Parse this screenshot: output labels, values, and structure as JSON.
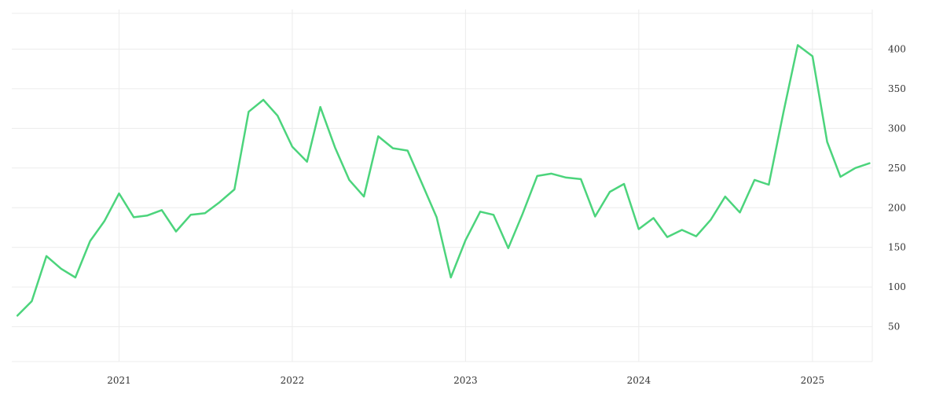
{
  "chart_data": {
    "type": "line",
    "title": "",
    "xlabel": "",
    "ylabel": "",
    "x_axis": {
      "type": "date",
      "range": [
        "2020-06-01",
        "2025-05-01"
      ],
      "tick_dates": [
        "2021-01-01",
        "2022-01-01",
        "2023-01-01",
        "2024-01-01",
        "2025-01-01"
      ],
      "tick_labels": [
        "2021",
        "2022",
        "2023",
        "2024",
        "2025"
      ]
    },
    "y_axis": {
      "position": "right",
      "ylim": [
        6,
        450
      ],
      "ticks": [
        50,
        100,
        150,
        200,
        250,
        300,
        350,
        400
      ],
      "tick_labels": [
        "50",
        "100",
        "150",
        "200",
        "250",
        "300",
        "350",
        "400"
      ]
    },
    "grid": true,
    "legend": "none",
    "series": [
      {
        "color": "#4cd47c",
        "points": [
          [
            "2020-06-01",
            64
          ],
          [
            "2020-07-01",
            82
          ],
          [
            "2020-08-01",
            139
          ],
          [
            "2020-09-01",
            123
          ],
          [
            "2020-10-01",
            112
          ],
          [
            "2020-11-01",
            158
          ],
          [
            "2020-12-01",
            183
          ],
          [
            "2021-01-01",
            218
          ],
          [
            "2021-02-01",
            188
          ],
          [
            "2021-03-01",
            190
          ],
          [
            "2021-04-01",
            197
          ],
          [
            "2021-05-01",
            170
          ],
          [
            "2021-06-01",
            191
          ],
          [
            "2021-07-01",
            193
          ],
          [
            "2021-08-01",
            207
          ],
          [
            "2021-09-01",
            223
          ],
          [
            "2021-10-01",
            321
          ],
          [
            "2021-11-01",
            336
          ],
          [
            "2021-12-01",
            316
          ],
          [
            "2022-01-01",
            277
          ],
          [
            "2022-02-01",
            258
          ],
          [
            "2022-03-01",
            327
          ],
          [
            "2022-04-01",
            276
          ],
          [
            "2022-05-01",
            235
          ],
          [
            "2022-06-01",
            214
          ],
          [
            "2022-07-01",
            290
          ],
          [
            "2022-08-01",
            275
          ],
          [
            "2022-09-01",
            272
          ],
          [
            "2022-10-01",
            231
          ],
          [
            "2022-11-01",
            188
          ],
          [
            "2022-12-01",
            112
          ],
          [
            "2023-01-01",
            159
          ],
          [
            "2023-02-01",
            195
          ],
          [
            "2023-03-01",
            191
          ],
          [
            "2023-04-01",
            149
          ],
          [
            "2023-05-01",
            192
          ],
          [
            "2023-06-01",
            240
          ],
          [
            "2023-07-01",
            243
          ],
          [
            "2023-08-01",
            238
          ],
          [
            "2023-09-01",
            236
          ],
          [
            "2023-10-01",
            189
          ],
          [
            "2023-11-01",
            220
          ],
          [
            "2023-12-01",
            230
          ],
          [
            "2024-01-01",
            173
          ],
          [
            "2024-02-01",
            187
          ],
          [
            "2024-03-01",
            163
          ],
          [
            "2024-04-01",
            172
          ],
          [
            "2024-05-01",
            164
          ],
          [
            "2024-06-01",
            185
          ],
          [
            "2024-07-01",
            214
          ],
          [
            "2024-08-01",
            194
          ],
          [
            "2024-09-01",
            235
          ],
          [
            "2024-10-01",
            229
          ],
          [
            "2024-11-01",
            321
          ],
          [
            "2024-12-01",
            405
          ],
          [
            "2025-01-01",
            391
          ],
          [
            "2025-02-01",
            283
          ],
          [
            "2025-03-01",
            239
          ],
          [
            "2025-04-01",
            250
          ],
          [
            "2025-05-01",
            256
          ]
        ]
      }
    ]
  }
}
